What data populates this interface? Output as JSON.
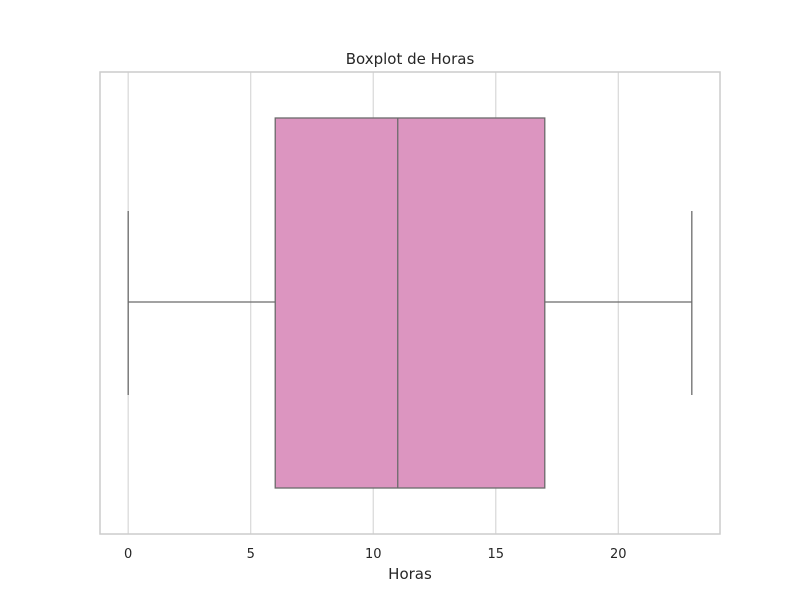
{
  "chart_data": {
    "type": "boxplot",
    "title": "Boxplot de Horas",
    "xlabel": "Horas",
    "ylabel": "",
    "orientation": "horizontal",
    "xlim": [
      -1.15,
      24.15
    ],
    "xticks": [
      0,
      5,
      10,
      15,
      20
    ],
    "xtick_labels": [
      "0",
      "5",
      "10",
      "15",
      "20"
    ],
    "grid": "vertical",
    "box": {
      "min": 0,
      "q1": 6,
      "median": 11,
      "q3": 17,
      "max": 23
    },
    "colors": {
      "box_fill": "#dc95c0",
      "box_edge": "#6b6b6b",
      "grid": "#d8d8d8",
      "frame": "#cccccc",
      "text": "#262626"
    }
  }
}
